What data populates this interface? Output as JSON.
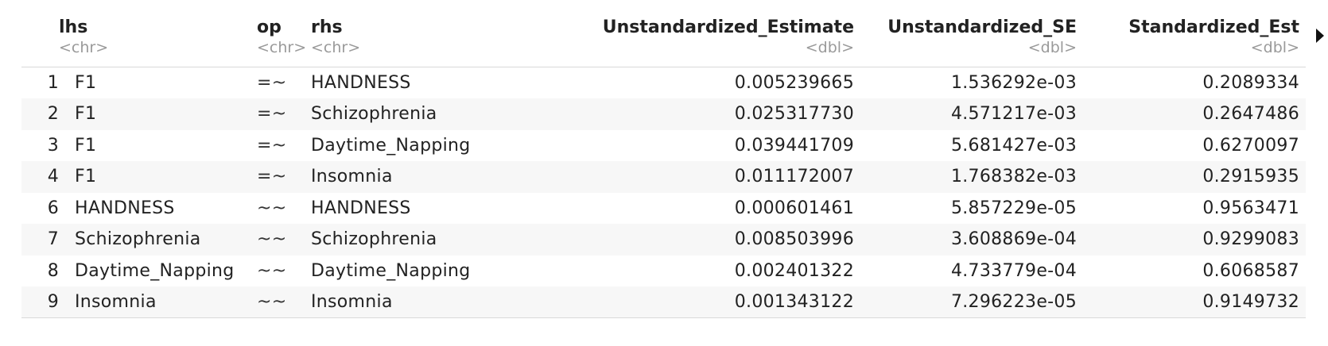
{
  "table": {
    "columns": [
      {
        "name": "lhs",
        "type": "<chr>"
      },
      {
        "name": "op",
        "type": "<chr>"
      },
      {
        "name": "rhs",
        "type": "<chr>"
      },
      {
        "name": "Unstandardized_Estimate",
        "type": "<dbl>"
      },
      {
        "name": "Unstandardized_SE",
        "type": "<dbl>"
      },
      {
        "name": "Standardized_Est",
        "type": "<dbl>"
      }
    ],
    "rows": [
      {
        "idx": "1",
        "lhs": "F1",
        "op": "=~",
        "rhs": "HANDNESS",
        "ue": "0.005239665",
        "se": "1.536292e-03",
        "std": "0.2089334"
      },
      {
        "idx": "2",
        "lhs": "F1",
        "op": "=~",
        "rhs": "Schizophrenia",
        "ue": "0.025317730",
        "se": "4.571217e-03",
        "std": "0.2647486"
      },
      {
        "idx": "3",
        "lhs": "F1",
        "op": "=~",
        "rhs": "Daytime_Napping",
        "ue": "0.039441709",
        "se": "5.681427e-03",
        "std": "0.6270097"
      },
      {
        "idx": "4",
        "lhs": "F1",
        "op": "=~",
        "rhs": "Insomnia",
        "ue": "0.011172007",
        "se": "1.768382e-03",
        "std": "0.2915935"
      },
      {
        "idx": "6",
        "lhs": "HANDNESS",
        "op": "~~",
        "rhs": "HANDNESS",
        "ue": "0.000601461",
        "se": "5.857229e-05",
        "std": "0.9563471"
      },
      {
        "idx": "7",
        "lhs": "Schizophrenia",
        "op": "~~",
        "rhs": "Schizophrenia",
        "ue": "0.008503996",
        "se": "3.608869e-04",
        "std": "0.9299083"
      },
      {
        "idx": "8",
        "lhs": "Daytime_Napping",
        "op": "~~",
        "rhs": "Daytime_Napping",
        "ue": "0.002401322",
        "se": "4.733779e-04",
        "std": "0.6068587"
      },
      {
        "idx": "9",
        "lhs": "Insomnia",
        "op": "~~",
        "rhs": "Insomnia",
        "ue": "0.001343122",
        "se": "7.296223e-05",
        "std": "0.9149732"
      }
    ]
  },
  "scroll_arrow_icon": "triangle-right-icon"
}
